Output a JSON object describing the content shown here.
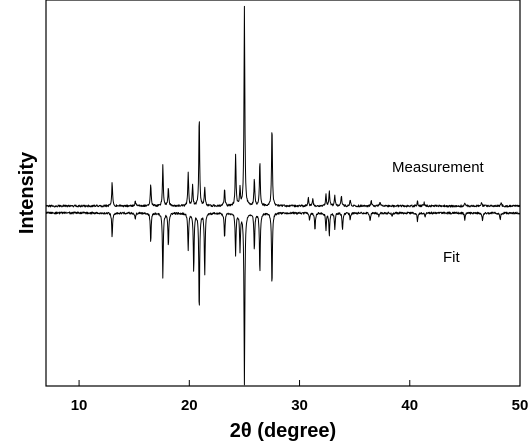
{
  "chart_data": {
    "type": "line",
    "xlabel": "2θ (degree)",
    "ylabel": "Intensity",
    "xlim": [
      7,
      50
    ],
    "xticks": [
      10,
      20,
      30,
      40,
      50
    ],
    "grid": false,
    "legend": "none",
    "annotations": [
      "Measurement",
      "Fit"
    ],
    "series": [
      {
        "name": "Measurement",
        "peaks": [
          [
            13.0,
            0.14
          ],
          [
            15.1,
            0.03
          ],
          [
            16.5,
            0.13
          ],
          [
            17.6,
            0.24
          ],
          [
            18.1,
            0.11
          ],
          [
            19.9,
            0.2
          ],
          [
            20.3,
            0.12
          ],
          [
            20.9,
            0.53
          ],
          [
            21.4,
            0.11
          ],
          [
            23.2,
            0.1
          ],
          [
            24.2,
            0.3
          ],
          [
            24.6,
            0.1
          ],
          [
            25.0,
            1.16
          ],
          [
            25.9,
            0.16
          ],
          [
            26.4,
            0.26
          ],
          [
            27.5,
            0.47
          ],
          [
            30.8,
            0.05
          ],
          [
            31.2,
            0.04
          ],
          [
            32.4,
            0.07
          ],
          [
            32.7,
            0.09
          ],
          [
            33.2,
            0.06
          ],
          [
            33.8,
            0.06
          ],
          [
            34.6,
            0.04
          ],
          [
            36.5,
            0.03
          ],
          [
            37.3,
            0.02
          ],
          [
            40.7,
            0.03
          ],
          [
            41.3,
            0.02
          ],
          [
            45.0,
            0.02
          ],
          [
            46.5,
            0.02
          ],
          [
            48.3,
            0.02
          ]
        ]
      },
      {
        "name": "Fit",
        "peaks": [
          [
            13.0,
            -0.14
          ],
          [
            15.1,
            -0.04
          ],
          [
            16.5,
            -0.17
          ],
          [
            17.6,
            -0.38
          ],
          [
            18.1,
            -0.2
          ],
          [
            19.9,
            -0.22
          ],
          [
            20.4,
            -0.34
          ],
          [
            20.9,
            -0.58
          ],
          [
            21.4,
            -0.36
          ],
          [
            23.2,
            -0.15
          ],
          [
            24.2,
            -0.24
          ],
          [
            24.6,
            -0.22
          ],
          [
            25.0,
            -1.0
          ],
          [
            25.9,
            -0.22
          ],
          [
            26.4,
            -0.35
          ],
          [
            27.5,
            -0.43
          ],
          [
            30.9,
            -0.04
          ],
          [
            31.4,
            -0.1
          ],
          [
            32.4,
            -0.1
          ],
          [
            32.7,
            -0.13
          ],
          [
            33.2,
            -0.09
          ],
          [
            33.9,
            -0.1
          ],
          [
            34.6,
            -0.04
          ],
          [
            36.4,
            -0.05
          ],
          [
            37.2,
            -0.02
          ],
          [
            38.4,
            -0.02
          ],
          [
            40.7,
            -0.05
          ],
          [
            41.4,
            -0.02
          ],
          [
            45.0,
            -0.04
          ],
          [
            46.6,
            -0.05
          ],
          [
            48.2,
            -0.04
          ]
        ]
      }
    ]
  }
}
